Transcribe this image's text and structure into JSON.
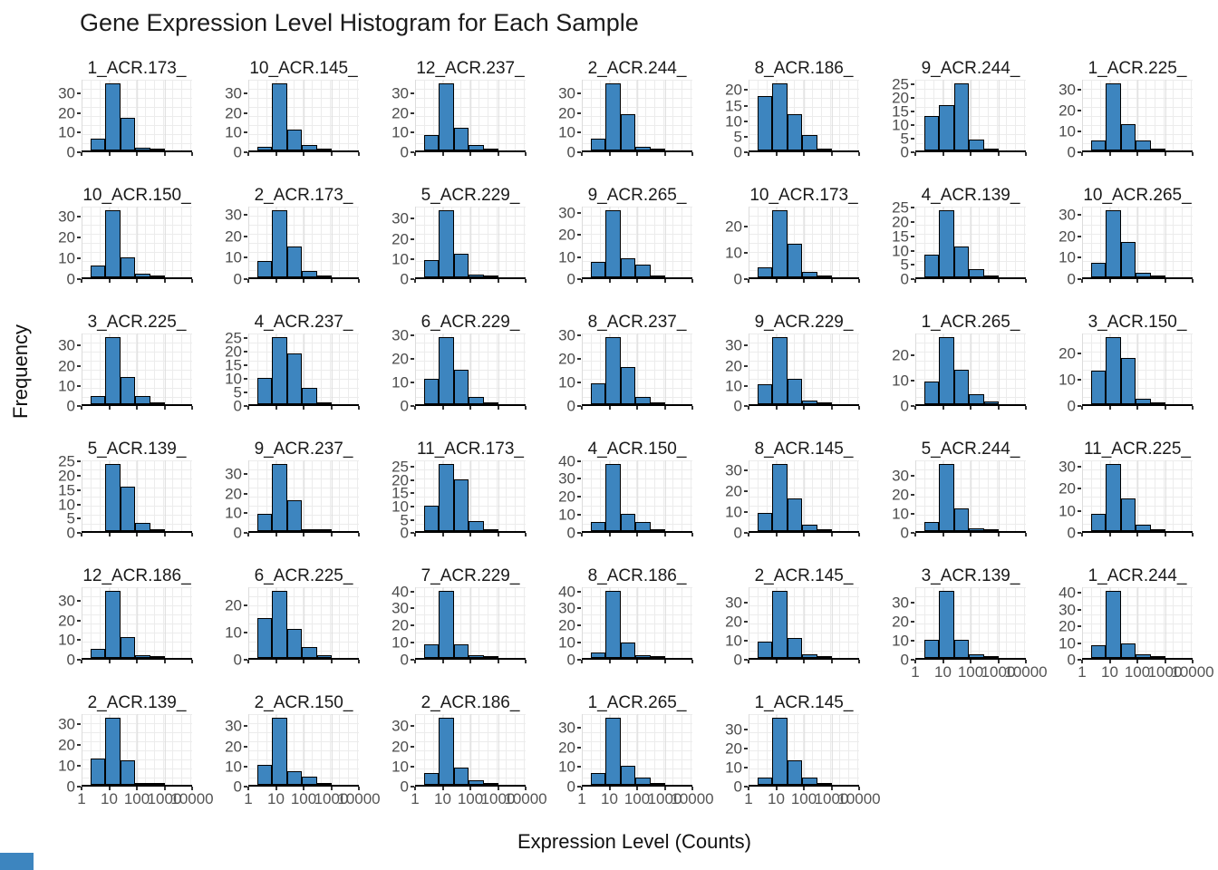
{
  "title": "Gene Expression Level Histogram for Each Sample",
  "colors": {
    "bar_fill": "#3d85bf",
    "bar_edge": "#000000",
    "tick_label": "#4d4d4d",
    "grid_line": "#ececec",
    "axis_line": "#000000",
    "corner_accent": "#3d85bf"
  },
  "chart_data": {
    "type": "bar",
    "subtype": "faceted-histograms",
    "title": "Gene Expression Level Histogram for Each Sample",
    "xlabel": "Expression Level (Counts)",
    "ylabel": "Frequency",
    "x_scale": "log10",
    "x_tick_labels": [
      "1",
      "10",
      "100",
      "1000",
      "10000"
    ],
    "grid": {
      "columns": 7,
      "rows": 6,
      "grid_on": true,
      "legend": "none"
    },
    "panels": [
      {
        "title": "1_ACR.173_",
        "yticks": [
          0,
          10,
          20,
          30
        ],
        "counts": [
          6,
          35,
          17,
          1.5,
          0.5
        ],
        "xlab": false
      },
      {
        "title": "10_ACR.145_",
        "yticks": [
          0,
          10,
          20,
          30
        ],
        "counts": [
          2,
          35,
          11,
          3,
          0.5
        ],
        "xlab": false
      },
      {
        "title": "12_ACR.237_",
        "yticks": [
          0,
          10,
          20,
          30
        ],
        "counts": [
          8,
          35,
          12,
          3,
          0.5
        ],
        "xlab": false
      },
      {
        "title": "2_ACR.244_",
        "yticks": [
          0,
          10,
          20,
          30
        ],
        "counts": [
          6,
          35,
          19,
          2,
          0.5
        ],
        "xlab": false
      },
      {
        "title": "8_ACR.186_",
        "yticks": [
          0,
          5,
          10,
          15,
          20
        ],
        "counts": [
          18,
          22,
          12,
          5,
          0.4
        ],
        "xlab": false
      },
      {
        "title": "9_ACR.244_",
        "yticks": [
          0,
          5,
          10,
          15,
          20,
          25
        ],
        "counts": [
          13,
          17,
          25,
          4,
          0.4
        ],
        "xlab": false
      },
      {
        "title": "1_ACR.225_",
        "yticks": [
          0,
          10,
          20,
          30
        ],
        "counts": [
          5,
          33,
          13,
          5,
          0.4
        ],
        "xlab": false
      },
      {
        "title": "10_ACR.150_",
        "yticks": [
          0,
          10,
          20,
          30
        ],
        "counts": [
          6,
          33,
          10,
          2,
          0.5
        ],
        "xlab": false
      },
      {
        "title": "2_ACR.173_",
        "yticks": [
          0,
          10,
          20,
          30
        ],
        "counts": [
          8,
          32,
          15,
          3,
          0.5
        ],
        "xlab": false
      },
      {
        "title": "5_ACR.229_",
        "yticks": [
          0,
          10,
          20,
          30
        ],
        "counts": [
          9,
          34,
          12,
          1.5,
          0.5
        ],
        "xlab": false
      },
      {
        "title": "9_ACR.265_",
        "yticks": [
          0,
          10,
          20,
          30
        ],
        "counts": [
          7,
          31,
          9,
          6,
          0.5
        ],
        "xlab": false
      },
      {
        "title": "10_ACR.173_",
        "yticks": [
          0,
          10,
          20
        ],
        "counts": [
          4,
          26,
          13,
          2,
          0.5
        ],
        "xlab": false
      },
      {
        "title": "4_ACR.139_",
        "yticks": [
          0,
          5,
          10,
          15,
          20,
          25
        ],
        "counts": [
          8,
          24,
          11,
          3,
          0.5
        ],
        "xlab": false
      },
      {
        "title": "10_ACR.265_",
        "yticks": [
          0,
          10,
          20,
          30
        ],
        "counts": [
          7,
          32,
          17,
          2,
          0.5
        ],
        "xlab": false
      },
      {
        "title": "3_ACR.225_",
        "yticks": [
          0,
          10,
          20,
          30
        ],
        "counts": [
          4,
          34,
          14,
          4,
          0.5
        ],
        "xlab": false
      },
      {
        "title": "4_ACR.237_",
        "yticks": [
          0,
          5,
          10,
          15,
          20,
          25
        ],
        "counts": [
          10,
          25,
          19,
          6,
          0.4
        ],
        "xlab": false
      },
      {
        "title": "6_ACR.229_",
        "yticks": [
          0,
          10,
          20,
          30
        ],
        "counts": [
          11,
          29,
          15,
          3,
          0.4
        ],
        "xlab": false
      },
      {
        "title": "8_ACR.237_",
        "yticks": [
          0,
          10,
          20,
          30
        ],
        "counts": [
          9,
          29,
          16,
          3,
          0.5
        ],
        "xlab": false
      },
      {
        "title": "9_ACR.229_",
        "yticks": [
          0,
          10,
          20,
          30
        ],
        "counts": [
          10,
          34,
          13,
          2,
          0.5
        ],
        "xlab": false
      },
      {
        "title": "1_ACR.265_",
        "yticks": [
          0,
          10,
          20
        ],
        "counts": [
          9,
          27,
          14,
          4,
          1
        ],
        "xlab": false
      },
      {
        "title": "3_ACR.150_",
        "yticks": [
          0,
          10,
          20
        ],
        "counts": [
          13,
          26,
          18,
          2,
          0.5
        ],
        "xlab": false
      },
      {
        "title": "5_ACR.139_",
        "yticks": [
          0,
          5,
          10,
          15,
          20,
          25
        ],
        "counts": [
          0,
          24,
          16,
          3,
          0.4
        ],
        "xlab": false
      },
      {
        "title": "9_ACR.237_",
        "yticks": [
          0,
          10,
          20,
          30
        ],
        "counts": [
          9,
          35,
          16,
          1,
          0.5
        ],
        "xlab": false
      },
      {
        "title": "11_ACR.173_",
        "yticks": [
          0,
          5,
          10,
          15,
          20,
          25
        ],
        "counts": [
          10,
          26,
          20,
          4,
          0.4
        ],
        "xlab": false
      },
      {
        "title": "4_ACR.150_",
        "yticks": [
          0,
          10,
          20,
          30,
          40
        ],
        "counts": [
          5,
          38,
          10,
          5,
          0.5
        ],
        "xlab": false
      },
      {
        "title": "8_ACR.145_",
        "yticks": [
          0,
          10,
          20,
          30
        ],
        "counts": [
          9,
          33,
          16,
          3,
          0.5
        ],
        "xlab": false
      },
      {
        "title": "5_ACR.244_",
        "yticks": [
          0,
          10,
          20,
          30
        ],
        "counts": [
          5,
          36,
          12,
          1.5,
          0.5
        ],
        "xlab": false
      },
      {
        "title": "11_ACR.225_",
        "yticks": [
          0,
          10,
          20,
          30
        ],
        "counts": [
          8,
          31,
          15,
          3,
          0.5
        ],
        "xlab": false
      },
      {
        "title": "12_ACR.186_",
        "yticks": [
          0,
          10,
          20,
          30
        ],
        "counts": [
          5,
          35,
          11,
          1.5,
          0.5
        ],
        "xlab": false
      },
      {
        "title": "6_ACR.225_",
        "yticks": [
          0,
          10,
          20
        ],
        "counts": [
          15,
          25,
          11,
          4,
          1
        ],
        "xlab": false
      },
      {
        "title": "7_ACR.229_",
        "yticks": [
          0,
          10,
          20,
          30,
          40
        ],
        "counts": [
          8,
          40,
          8,
          1.5,
          0.5
        ],
        "xlab": false
      },
      {
        "title": "8_ACR.186_",
        "yticks": [
          0,
          10,
          20,
          30,
          40
        ],
        "counts": [
          3,
          40,
          9,
          1.5,
          0.5
        ],
        "xlab": false
      },
      {
        "title": "2_ACR.145_",
        "yticks": [
          0,
          10,
          20,
          30
        ],
        "counts": [
          9,
          36,
          11,
          2,
          0.5
        ],
        "xlab": false
      },
      {
        "title": "3_ACR.139_",
        "yticks": [
          0,
          10,
          20,
          30
        ],
        "counts": [
          10,
          36,
          10,
          2,
          0.5
        ],
        "xlab": true
      },
      {
        "title": "1_ACR.244_",
        "yticks": [
          0,
          10,
          20,
          30,
          40
        ],
        "counts": [
          8,
          41,
          9,
          2,
          0.5
        ],
        "xlab": true
      },
      {
        "title": "2_ACR.139_",
        "yticks": [
          0,
          10,
          20,
          30
        ],
        "counts": [
          13,
          33,
          12,
          1,
          0.5
        ],
        "xlab": true
      },
      {
        "title": "2_ACR.150_",
        "yticks": [
          0,
          10,
          20,
          30
        ],
        "counts": [
          10,
          34,
          7,
          4,
          0.5
        ],
        "xlab": true
      },
      {
        "title": "2_ACR.186_",
        "yticks": [
          0,
          10,
          20,
          30
        ],
        "counts": [
          6,
          34,
          9,
          2.5,
          0.5
        ],
        "xlab": true
      },
      {
        "title": "1_ACR.265_",
        "yticks": [
          0,
          10,
          20,
          30
        ],
        "counts": [
          6,
          35,
          10,
          4,
          0.5
        ],
        "xlab": true
      },
      {
        "title": "1_ACR.145_",
        "yticks": [
          0,
          10,
          20,
          30
        ],
        "counts": [
          4,
          36,
          13,
          4,
          0.5
        ],
        "xlab": true
      }
    ]
  }
}
